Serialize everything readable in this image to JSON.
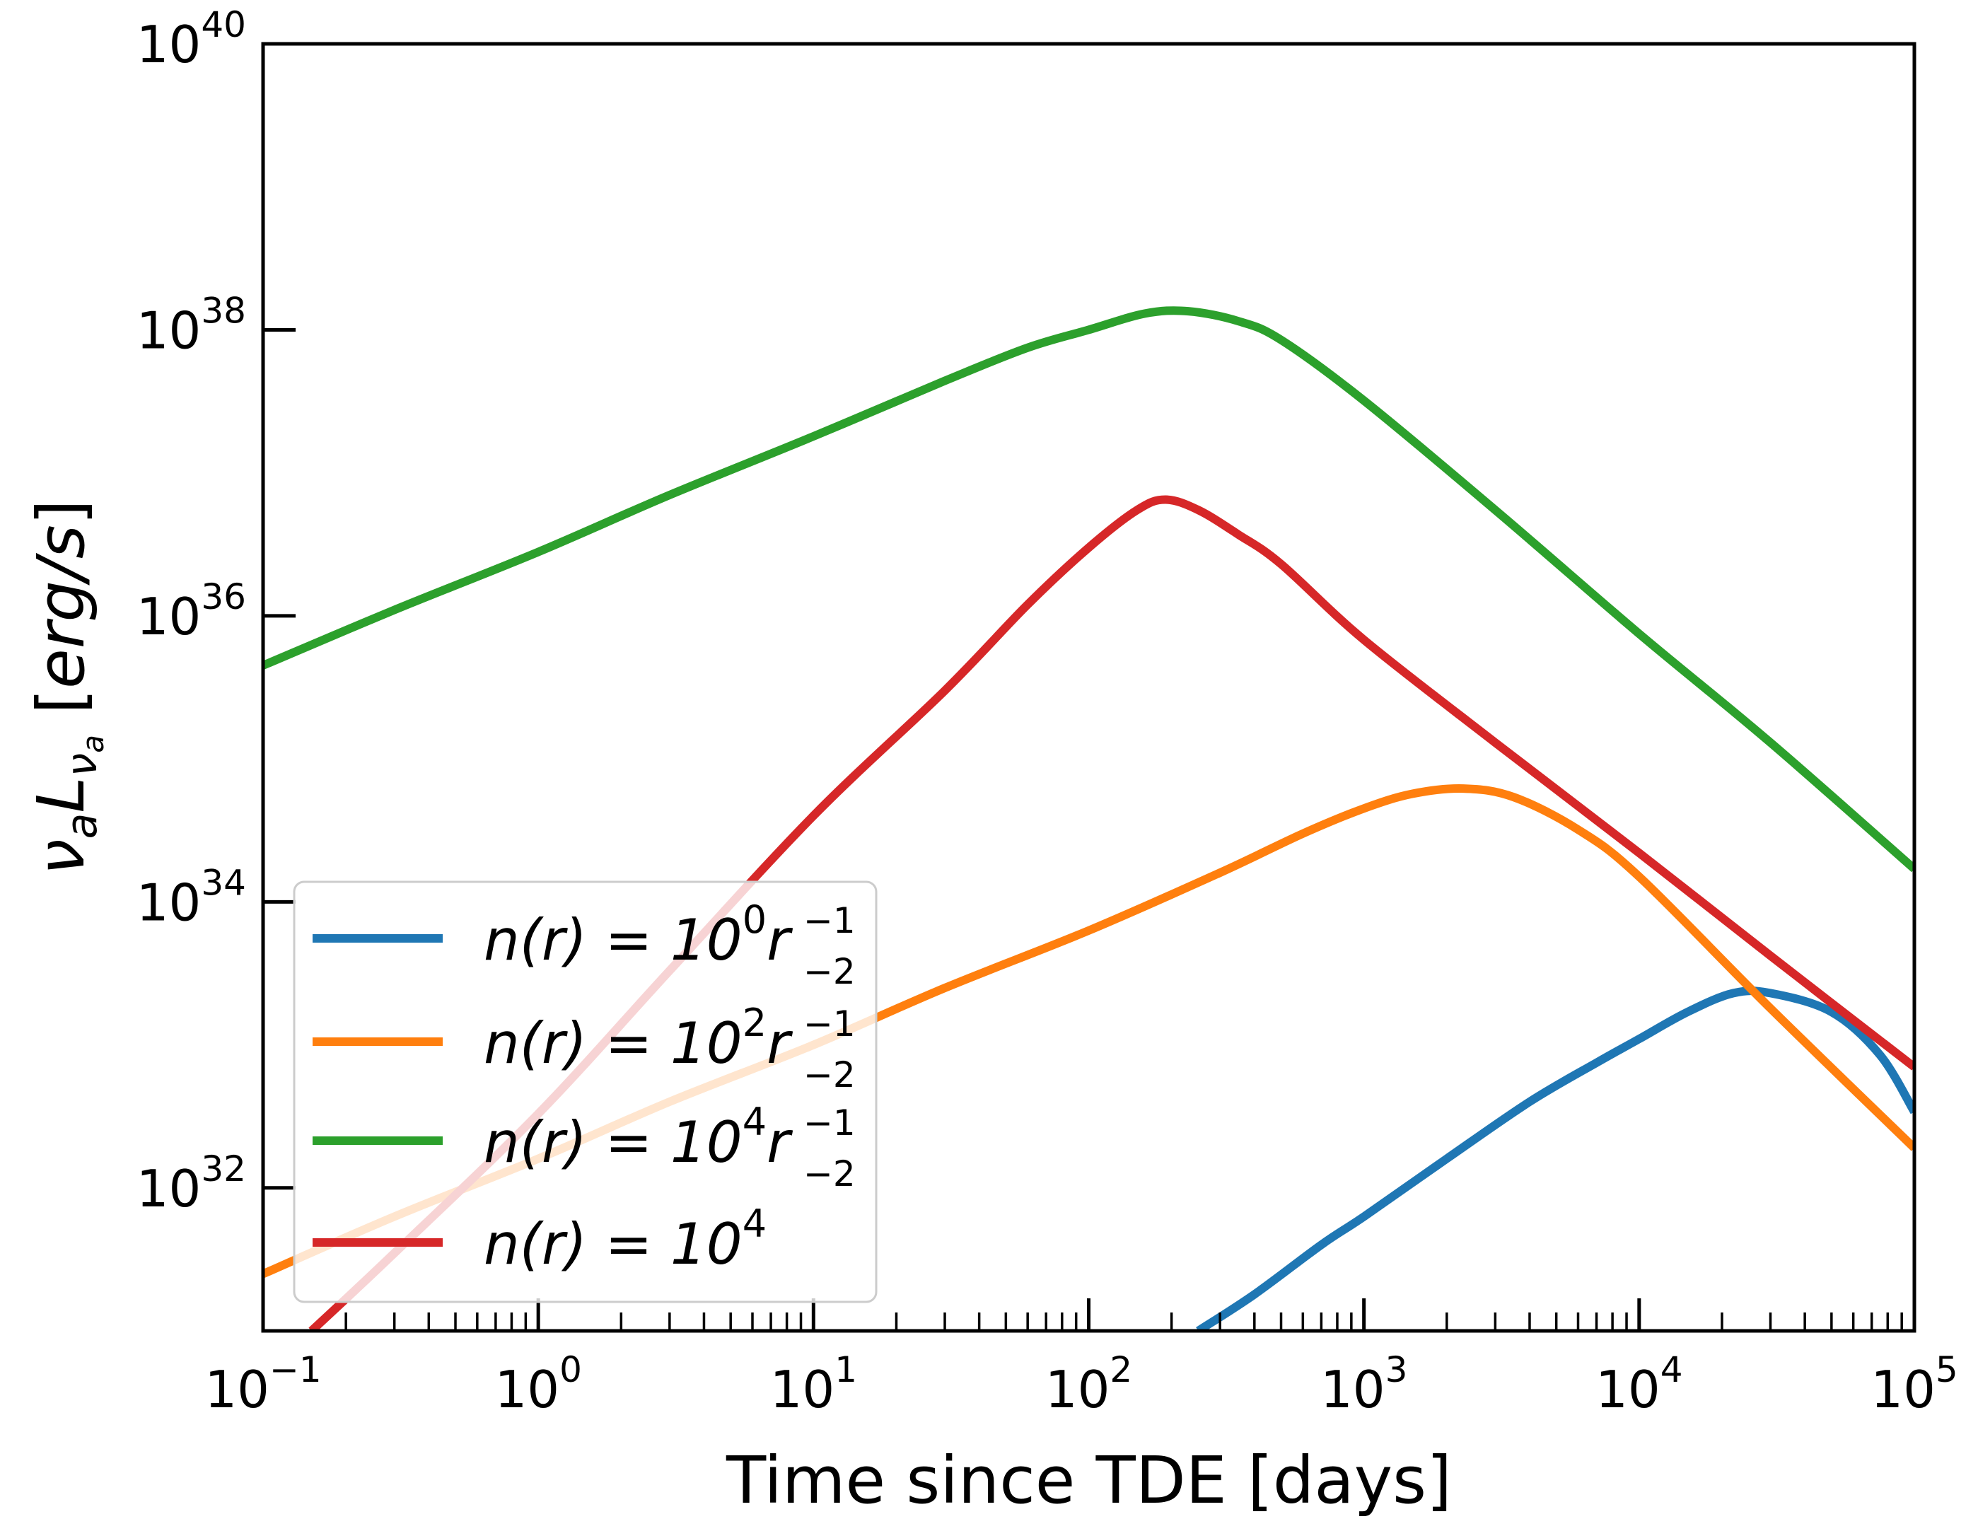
{
  "chart_data": {
    "type": "line",
    "xlabel": "Time since TDE [days]",
    "ylabel": "ν_a L_{ν_a} [erg/s]",
    "xscale": "log",
    "yscale": "log",
    "xlim": [
      0.1,
      100000
    ],
    "ylim": [
      1e+31,
      1e+40
    ],
    "grid": false,
    "legend_position": "lower-left",
    "x_ticks": [
      {
        "value": 0.1,
        "base": "10",
        "exp": "−1"
      },
      {
        "value": 1,
        "base": "10",
        "exp": "0"
      },
      {
        "value": 10,
        "base": "10",
        "exp": "1"
      },
      {
        "value": 100,
        "base": "10",
        "exp": "2"
      },
      {
        "value": 1000,
        "base": "10",
        "exp": "3"
      },
      {
        "value": 10000,
        "base": "10",
        "exp": "4"
      },
      {
        "value": 100000,
        "base": "10",
        "exp": "5"
      }
    ],
    "y_ticks": [
      {
        "value": 1e+32,
        "base": "10",
        "exp": "32"
      },
      {
        "value": 1e+34,
        "base": "10",
        "exp": "34"
      },
      {
        "value": 1e+36,
        "base": "10",
        "exp": "36"
      },
      {
        "value": 1e+38,
        "base": "10",
        "exp": "38"
      },
      {
        "value": 1e+40,
        "base": "10",
        "exp": "40"
      }
    ],
    "series": [
      {
        "name": "n(r) = 10^0 r_{-2}^{-1}",
        "label_parts": {
          "pre": "n(r) = 10",
          "exp": "0",
          "mid": "r",
          "sub": "−2",
          "sup": "−1"
        },
        "color": "#1f77b4",
        "x": [
          250,
          400,
          700,
          1000,
          2000,
          4000,
          7000,
          10000,
          15000,
          22000,
          30000,
          50000,
          75000,
          100000
        ],
        "y": [
          1e+31,
          1.8e+31,
          4e+31,
          6.3e+31,
          1.6e+32,
          4e+32,
          7.5e+32,
          1.1e+33,
          1.7e+33,
          2.3e+33,
          2.3e+33,
          1.7e+33,
          8.5e+32,
          3.4e+32
        ]
      },
      {
        "name": "n(r) = 10^2 r_{-2}^{-1}",
        "label_parts": {
          "pre": "n(r) = 10",
          "exp": "2",
          "mid": "r",
          "sub": "−2",
          "sup": "−1"
        },
        "color": "#ff7f0e",
        "x": [
          0.1,
          0.3,
          1,
          3,
          10,
          30,
          100,
          300,
          600,
          1000,
          1500,
          2300,
          3500,
          6000,
          10000,
          30000,
          100000
        ],
        "y": [
          2.5e+31,
          6.3e+31,
          1.6e+32,
          4e+32,
          1e+33,
          2.5e+33,
          6.3e+33,
          1.6e+34,
          3e+34,
          4.5e+34,
          5.7e+34,
          6.2e+34,
          5.4e+34,
          3.2e+34,
          1.5e+34,
          1.8e+33,
          1.9e+32
        ]
      },
      {
        "name": "n(r) = 10^4 r_{-2}^{-1}",
        "label_parts": {
          "pre": "n(r) = 10",
          "exp": "4",
          "mid": "r",
          "sub": "−2",
          "sup": "−1"
        },
        "color": "#2ca02c",
        "x": [
          0.1,
          0.3,
          1,
          3,
          10,
          30,
          60,
          100,
          160,
          230,
          350,
          500,
          1000,
          3000,
          10000,
          30000,
          100000
        ],
        "y": [
          4.5e+35,
          1.1e+36,
          2.8e+36,
          7e+36,
          1.8e+37,
          4.4e+37,
          7.5e+37,
          1e+38,
          1.3e+38,
          1.35e+38,
          1.15e+38,
          8.5e+37,
          3.2e+37,
          5.5e+36,
          7.5e+35,
          1.3e+35,
          1.7e+34
        ]
      },
      {
        "name": "n(r) = 10^4",
        "label_parts": {
          "pre": "n(r) = 10",
          "exp": "4",
          "mid": "",
          "sub": "",
          "sup": ""
        },
        "color": "#d62728",
        "x": [
          0.15,
          0.3,
          1,
          3,
          10,
          30,
          60,
          100,
          150,
          190,
          250,
          350,
          500,
          1000,
          3000,
          10000,
          30000,
          100000
        ],
        "y": [
          1e+31,
          3.5e+31,
          3.3e+32,
          3.3e+33,
          4e+34,
          3e+35,
          1.2e+36,
          3e+36,
          5.5e+36,
          6.5e+36,
          5.5e+36,
          3.7e+36,
          2.3e+36,
          6.8e+35,
          1.3e+35,
          2.2e+34,
          4.2e+33,
          7e+32
        ]
      }
    ]
  }
}
